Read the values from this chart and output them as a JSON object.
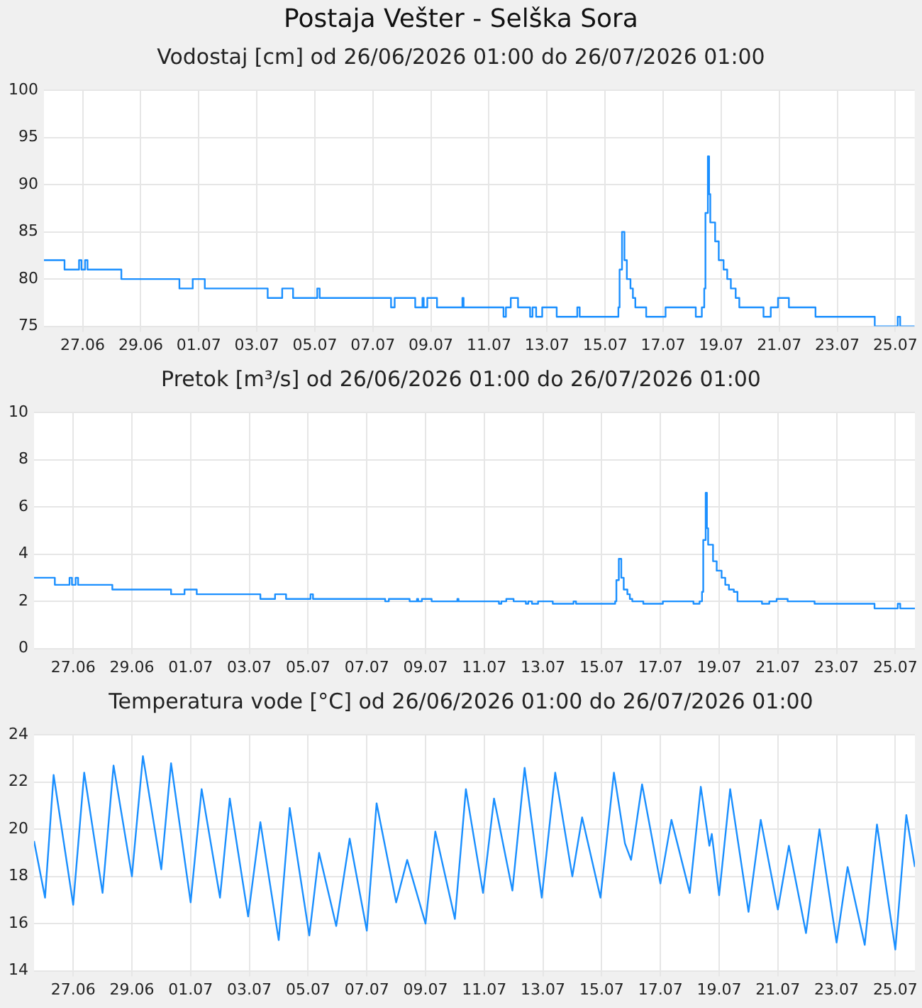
{
  "chart_data": [
    {
      "type": "step",
      "title": "Postaja Vešter - Selška Sora",
      "subtitle": "Vodostaj [cm] od 26/06/2026 01:00 do 26/07/2026 01:00",
      "color": "#1a8fff",
      "grid": true,
      "x": [
        "2026-06-26T01:00",
        "2026-06-26T18:00",
        "2026-06-27T06:00",
        "2026-06-27T08:00",
        "2026-06-27T11:00",
        "2026-06-27T13:00",
        "2026-06-28T17:00",
        "2026-06-30T17:00",
        "2026-07-01T04:00",
        "2026-07-01T14:00",
        "2026-07-03T18:00",
        "2026-07-04T06:00",
        "2026-07-04T15:00",
        "2026-07-05T11:00",
        "2026-07-05T13:00",
        "2026-07-08T00:00",
        "2026-07-08T03:00",
        "2026-07-08T20:00",
        "2026-07-09T02:00",
        "2026-07-09T03:00",
        "2026-07-09T06:00",
        "2026-07-09T14:00",
        "2026-07-10T11:00",
        "2026-07-10T12:00",
        "2026-07-11T21:00",
        "2026-07-11T23:00",
        "2026-07-12T03:00",
        "2026-07-12T09:00",
        "2026-07-12T19:00",
        "2026-07-12T21:00",
        "2026-07-13T00:00",
        "2026-07-13T05:00",
        "2026-07-13T17:00",
        "2026-07-14T10:00",
        "2026-07-14T12:00",
        "2026-07-15T20:00",
        "2026-07-15T21:00",
        "2026-07-15T23:00",
        "2026-07-16T01:00",
        "2026-07-16T03:00",
        "2026-07-16T06:00",
        "2026-07-16T08:00",
        "2026-07-16T10:00",
        "2026-07-16T19:00",
        "2026-07-17T11:00",
        "2026-07-18T12:00",
        "2026-07-18T17:00",
        "2026-07-18T19:00",
        "2026-07-18T20:00",
        "2026-07-18T22:00",
        "2026-07-18T23:00",
        "2026-07-19T00:00",
        "2026-07-19T04:00",
        "2026-07-19T07:00",
        "2026-07-19T11:00",
        "2026-07-19T14:00",
        "2026-07-19T17:00",
        "2026-07-19T21:00",
        "2026-07-20T00:00",
        "2026-07-20T20:00",
        "2026-07-21T02:00",
        "2026-07-21T08:00",
        "2026-07-21T17:00",
        "2026-07-22T15:00",
        "2026-07-24T16:00",
        "2026-07-25T11:00",
        "2026-07-25T13:00",
        "2026-07-26T01:00"
      ],
      "values": [
        82,
        81,
        82,
        81,
        82,
        81,
        80,
        79,
        80,
        79,
        78,
        79,
        78,
        79,
        78,
        77,
        78,
        77,
        78,
        77,
        78,
        77,
        78,
        77,
        76,
        77,
        78,
        77,
        76,
        77,
        76,
        77,
        76,
        77,
        76,
        77,
        81,
        85,
        82,
        80,
        79,
        78,
        77,
        76,
        77,
        76,
        77,
        79,
        87,
        93,
        89,
        86,
        84,
        82,
        81,
        80,
        79,
        78,
        77,
        76,
        77,
        78,
        77,
        76,
        75,
        76,
        75,
        75
      ],
      "xlim": [
        "2026-06-26T01:00",
        "2026-07-26T01:00"
      ],
      "xticks": [
        {
          "value": "2026-06-27T09:00",
          "label": "27.06"
        },
        {
          "value": "2026-06-29T09:00",
          "label": "29.06"
        },
        {
          "value": "2026-07-01T09:00",
          "label": "01.07"
        },
        {
          "value": "2026-07-03T09:00",
          "label": "03.07"
        },
        {
          "value": "2026-07-05T09:00",
          "label": "05.07"
        },
        {
          "value": "2026-07-07T09:00",
          "label": "07.07"
        },
        {
          "value": "2026-07-09T09:00",
          "label": "09.07"
        },
        {
          "value": "2026-07-11T09:00",
          "label": "11.07"
        },
        {
          "value": "2026-07-13T09:00",
          "label": "13.07"
        },
        {
          "value": "2026-07-15T09:00",
          "label": "15.07"
        },
        {
          "value": "2026-07-17T09:00",
          "label": "17.07"
        },
        {
          "value": "2026-07-19T09:00",
          "label": "19.07"
        },
        {
          "value": "2026-07-21T09:00",
          "label": "21.07"
        },
        {
          "value": "2026-07-23T09:00",
          "label": "23.07"
        },
        {
          "value": "2026-07-25T09:00",
          "label": "25.07"
        }
      ],
      "ylim": [
        75,
        100
      ],
      "yticks": [
        75,
        80,
        85,
        90,
        95,
        100
      ]
    },
    {
      "type": "step",
      "title": "Pretok [m³/s] od 26/06/2026 01:00 do 26/07/2026 01:00",
      "color": "#1a8fff",
      "grid": true,
      "x": [
        "2026-06-26T01:00",
        "2026-06-26T18:00",
        "2026-06-27T06:00",
        "2026-06-27T08:00",
        "2026-06-27T11:00",
        "2026-06-27T13:00",
        "2026-06-28T17:00",
        "2026-06-30T17:00",
        "2026-07-01T04:00",
        "2026-07-01T14:00",
        "2026-07-03T18:00",
        "2026-07-04T06:00",
        "2026-07-04T15:00",
        "2026-07-05T11:00",
        "2026-07-05T13:00",
        "2026-07-08T00:00",
        "2026-07-08T03:00",
        "2026-07-08T20:00",
        "2026-07-09T02:00",
        "2026-07-09T03:00",
        "2026-07-09T06:00",
        "2026-07-09T14:00",
        "2026-07-10T11:00",
        "2026-07-10T12:00",
        "2026-07-11T21:00",
        "2026-07-11T23:00",
        "2026-07-12T03:00",
        "2026-07-12T09:00",
        "2026-07-12T19:00",
        "2026-07-12T21:00",
        "2026-07-13T00:00",
        "2026-07-13T05:00",
        "2026-07-13T17:00",
        "2026-07-14T10:00",
        "2026-07-14T12:00",
        "2026-07-15T20:00",
        "2026-07-15T21:00",
        "2026-07-15T23:00",
        "2026-07-16T01:00",
        "2026-07-16T03:00",
        "2026-07-16T06:00",
        "2026-07-16T08:00",
        "2026-07-16T10:00",
        "2026-07-16T19:00",
        "2026-07-17T11:00",
        "2026-07-18T12:00",
        "2026-07-18T17:00",
        "2026-07-18T19:00",
        "2026-07-18T20:00",
        "2026-07-18T22:00",
        "2026-07-18T23:00",
        "2026-07-19T00:00",
        "2026-07-19T04:00",
        "2026-07-19T07:00",
        "2026-07-19T11:00",
        "2026-07-19T14:00",
        "2026-07-19T17:00",
        "2026-07-19T21:00",
        "2026-07-20T00:00",
        "2026-07-20T20:00",
        "2026-07-21T02:00",
        "2026-07-21T08:00",
        "2026-07-21T17:00",
        "2026-07-22T15:00",
        "2026-07-24T16:00",
        "2026-07-25T11:00",
        "2026-07-25T13:00",
        "2026-07-26T01:00"
      ],
      "values": [
        3.0,
        2.7,
        3.0,
        2.7,
        3.0,
        2.7,
        2.5,
        2.3,
        2.5,
        2.3,
        2.1,
        2.3,
        2.1,
        2.3,
        2.1,
        2.0,
        2.1,
        2.0,
        2.1,
        2.0,
        2.1,
        2.0,
        2.1,
        2.0,
        1.9,
        2.0,
        2.1,
        2.0,
        1.9,
        2.0,
        1.9,
        2.0,
        1.9,
        2.0,
        1.9,
        2.0,
        2.9,
        3.8,
        3.0,
        2.5,
        2.3,
        2.1,
        2.0,
        1.9,
        2.0,
        1.9,
        2.0,
        2.4,
        4.6,
        6.6,
        5.1,
        4.4,
        3.7,
        3.3,
        3.0,
        2.7,
        2.5,
        2.4,
        2.0,
        1.9,
        2.0,
        2.1,
        2.0,
        1.9,
        1.7,
        1.9,
        1.7,
        1.7
      ],
      "xlim": [
        "2026-06-26T01:00",
        "2026-07-26T01:00"
      ],
      "xticks": [
        {
          "value": "2026-06-27T09:00",
          "label": "27.06"
        },
        {
          "value": "2026-06-29T09:00",
          "label": "29.06"
        },
        {
          "value": "2026-07-01T09:00",
          "label": "01.07"
        },
        {
          "value": "2026-07-03T09:00",
          "label": "03.07"
        },
        {
          "value": "2026-07-05T09:00",
          "label": "05.07"
        },
        {
          "value": "2026-07-07T09:00",
          "label": "07.07"
        },
        {
          "value": "2026-07-09T09:00",
          "label": "09.07"
        },
        {
          "value": "2026-07-11T09:00",
          "label": "11.07"
        },
        {
          "value": "2026-07-13T09:00",
          "label": "13.07"
        },
        {
          "value": "2026-07-15T09:00",
          "label": "15.07"
        },
        {
          "value": "2026-07-17T09:00",
          "label": "17.07"
        },
        {
          "value": "2026-07-19T09:00",
          "label": "19.07"
        },
        {
          "value": "2026-07-21T09:00",
          "label": "21.07"
        },
        {
          "value": "2026-07-23T09:00",
          "label": "23.07"
        },
        {
          "value": "2026-07-25T09:00",
          "label": "25.07"
        }
      ],
      "ylim": [
        0,
        10
      ],
      "yticks": [
        0,
        2,
        4,
        6,
        8,
        10
      ]
    },
    {
      "type": "line",
      "title": "Temperatura vode [°C] od 26/06/2026 01:00 do 26/07/2026 01:00",
      "color": "#1a8fff",
      "grid": true,
      "x": [
        "2026-06-26T01:00",
        "2026-06-26T10:00",
        "2026-06-26T17:00",
        "2026-06-27T09:00",
        "2026-06-27T18:00",
        "2026-06-28T09:00",
        "2026-06-28T18:00",
        "2026-06-29T09:00",
        "2026-06-29T18:00",
        "2026-06-30T09:00",
        "2026-06-30T17:00",
        "2026-07-01T09:00",
        "2026-07-01T18:00",
        "2026-07-02T09:00",
        "2026-07-02T17:00",
        "2026-07-03T08:00",
        "2026-07-03T18:00",
        "2026-07-04T09:00",
        "2026-07-04T18:00",
        "2026-07-05T10:00",
        "2026-07-05T18:00",
        "2026-07-06T08:00",
        "2026-07-06T19:00",
        "2026-07-07T09:00",
        "2026-07-07T17:00",
        "2026-07-08T09:00",
        "2026-07-08T18:00",
        "2026-07-09T09:00",
        "2026-07-09T17:00",
        "2026-07-10T09:00",
        "2026-07-10T18:00",
        "2026-07-11T08:00",
        "2026-07-11T17:00",
        "2026-07-12T08:00",
        "2026-07-12T18:00",
        "2026-07-13T08:00",
        "2026-07-13T19:00",
        "2026-07-14T09:00",
        "2026-07-14T17:00",
        "2026-07-15T08:00",
        "2026-07-15T19:00",
        "2026-07-16T04:00",
        "2026-07-16T09:00",
        "2026-07-16T18:00",
        "2026-07-17T09:00",
        "2026-07-17T18:00",
        "2026-07-18T09:00",
        "2026-07-18T18:00",
        "2026-07-19T01:00",
        "2026-07-19T03:00",
        "2026-07-19T09:00",
        "2026-07-19T18:00",
        "2026-07-20T09:00",
        "2026-07-20T19:00",
        "2026-07-21T09:00",
        "2026-07-21T18:00",
        "2026-07-22T08:00",
        "2026-07-22T19:00",
        "2026-07-23T09:00",
        "2026-07-23T18:00",
        "2026-07-24T08:00",
        "2026-07-24T18:00",
        "2026-07-25T09:00",
        "2026-07-25T18:00",
        "2026-07-26T01:00"
      ],
      "values": [
        19.5,
        17.1,
        22.3,
        16.8,
        22.4,
        17.3,
        22.7,
        18.0,
        23.1,
        18.3,
        22.8,
        16.9,
        21.7,
        17.1,
        21.3,
        16.3,
        20.3,
        15.3,
        20.9,
        15.5,
        19.0,
        15.9,
        19.6,
        15.7,
        21.1,
        16.9,
        18.7,
        16.0,
        19.9,
        16.2,
        21.7,
        17.3,
        21.3,
        17.4,
        22.6,
        17.1,
        22.4,
        18.0,
        20.5,
        17.1,
        22.4,
        19.4,
        18.7,
        21.9,
        17.7,
        20.4,
        17.3,
        21.8,
        19.3,
        19.8,
        17.2,
        21.7,
        16.5,
        20.4,
        16.6,
        19.3,
        15.6,
        20.0,
        15.2,
        18.4,
        15.1,
        20.2,
        14.9,
        20.6,
        18.4
      ],
      "xlim": [
        "2026-06-26T01:00",
        "2026-07-26T01:00"
      ],
      "xticks": [
        {
          "value": "2026-06-27T09:00",
          "label": "27.06"
        },
        {
          "value": "2026-06-29T09:00",
          "label": "29.06"
        },
        {
          "value": "2026-07-01T09:00",
          "label": "01.07"
        },
        {
          "value": "2026-07-03T09:00",
          "label": "03.07"
        },
        {
          "value": "2026-07-05T09:00",
          "label": "05.07"
        },
        {
          "value": "2026-07-07T09:00",
          "label": "07.07"
        },
        {
          "value": "2026-07-09T09:00",
          "label": "09.07"
        },
        {
          "value": "2026-07-11T09:00",
          "label": "11.07"
        },
        {
          "value": "2026-07-13T09:00",
          "label": "13.07"
        },
        {
          "value": "2026-07-15T09:00",
          "label": "15.07"
        },
        {
          "value": "2026-07-17T09:00",
          "label": "17.07"
        },
        {
          "value": "2026-07-19T09:00",
          "label": "19.07"
        },
        {
          "value": "2026-07-21T09:00",
          "label": "21.07"
        },
        {
          "value": "2026-07-23T09:00",
          "label": "23.07"
        },
        {
          "value": "2026-07-25T09:00",
          "label": "25.07"
        }
      ],
      "ylim": [
        14,
        24
      ],
      "yticks": [
        14,
        16,
        18,
        20,
        22,
        24
      ]
    }
  ]
}
